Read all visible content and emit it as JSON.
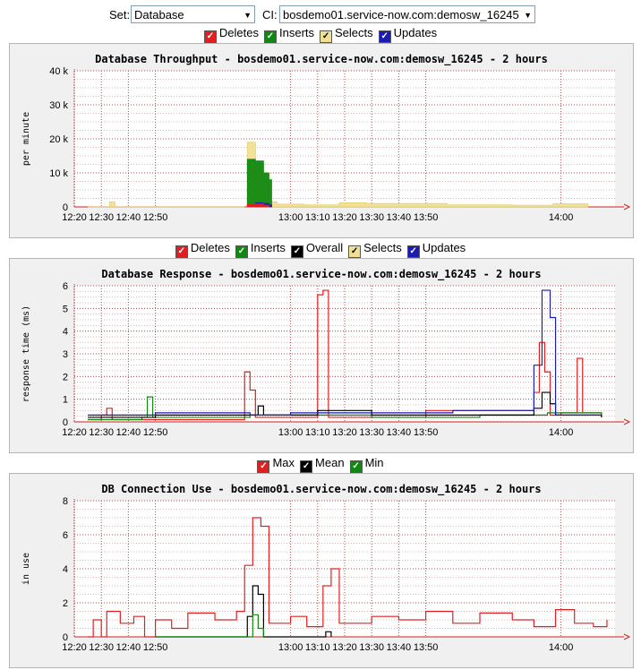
{
  "toolbar": {
    "set_label": "Set:",
    "set_value": "Database",
    "ci_label": "CI:",
    "ci_value": "bosdemo01.service-now.com:demosw_16245"
  },
  "colors": {
    "deletes": "#e02020",
    "inserts": "#118811",
    "selects": "#f0e094",
    "updates": "#1c1cb0",
    "overall": "#000000",
    "max": "#e02020",
    "mean": "#000000",
    "min": "#118811",
    "grid": "#b84b4b"
  },
  "legends": {
    "throughput": [
      {
        "label": "Deletes",
        "color": "#e02020",
        "checked": true
      },
      {
        "label": "Inserts",
        "color": "#118811",
        "checked": true
      },
      {
        "label": "Selects",
        "color": "#f0e094",
        "checked": true
      },
      {
        "label": "Updates",
        "color": "#1c1cb0",
        "checked": true
      }
    ],
    "response": [
      {
        "label": "Deletes",
        "color": "#e02020",
        "checked": true
      },
      {
        "label": "Inserts",
        "color": "#118811",
        "checked": true
      },
      {
        "label": "Overall",
        "color": "#000000",
        "checked": true
      },
      {
        "label": "Selects",
        "color": "#f0e094",
        "checked": true
      },
      {
        "label": "Updates",
        "color": "#1c1cb0",
        "checked": true
      }
    ],
    "connection": [
      {
        "label": "Max",
        "color": "#e02020",
        "checked": true
      },
      {
        "label": "Mean",
        "color": "#000000",
        "checked": true
      },
      {
        "label": "Min",
        "color": "#118811",
        "checked": true
      }
    ]
  },
  "chart_data": [
    {
      "type": "area",
      "title": "Database Throughput - bosdemo01.service-now.com:demosw_16245 - 2 hours",
      "ylabel": "per minute",
      "xlabel": "",
      "x_ticks": [
        "12:20",
        "12:30",
        "12:40",
        "12:50",
        "13:00",
        "13:10",
        "13:20",
        "13:30",
        "13:40",
        "13:50",
        "14:00"
      ],
      "y_ticks": [
        "0",
        "10 k",
        "20 k",
        "30 k",
        "40 k"
      ],
      "ylim": [
        0,
        40000
      ],
      "stacked": true,
      "series": [
        {
          "name": "Deletes",
          "points": [
            [
              12.83,
              0
            ],
            [
              12.84,
              800
            ],
            [
              12.87,
              900
            ],
            [
              12.9,
              500
            ],
            [
              12.92,
              0
            ]
          ]
        },
        {
          "name": "Inserts",
          "points": [
            [
              12.83,
              0
            ],
            [
              12.84,
              14000
            ],
            [
              12.87,
              13500
            ],
            [
              12.9,
              10000
            ],
            [
              12.92,
              8000
            ],
            [
              12.93,
              0
            ]
          ]
        },
        {
          "name": "Updates",
          "points": [
            [
              12.84,
              500
            ],
            [
              12.87,
              1200
            ],
            [
              12.9,
              1000
            ],
            [
              12.92,
              600
            ],
            [
              12.93,
              0
            ]
          ]
        },
        {
          "name": "Selects",
          "points": [
            [
              12.25,
              0
            ],
            [
              12.33,
              1500
            ],
            [
              12.35,
              0
            ],
            [
              12.84,
              19000
            ],
            [
              12.87,
              12000
            ],
            [
              12.9,
              10000
            ],
            [
              12.92,
              1500
            ],
            [
              12.95,
              800
            ],
            [
              13.05,
              600
            ],
            [
              13.18,
              1200
            ],
            [
              13.28,
              1000
            ],
            [
              13.58,
              600
            ],
            [
              13.82,
              500
            ],
            [
              13.97,
              900
            ],
            [
              14.1,
              300
            ]
          ]
        }
      ]
    },
    {
      "type": "line",
      "title": "Database Response - bosdemo01.service-now.com:demosw_16245 - 2 hours",
      "ylabel": "response time (ms)",
      "xlabel": "",
      "x_ticks": [
        "12:20",
        "12:30",
        "12:40",
        "12:50",
        "13:00",
        "13:10",
        "13:20",
        "13:30",
        "13:40",
        "13:50",
        "14:00"
      ],
      "y_ticks": [
        "0",
        "1",
        "2",
        "3",
        "4",
        "5",
        "6"
      ],
      "ylim": [
        0,
        6
      ],
      "series": [
        {
          "name": "Deletes",
          "points": [
            [
              12.25,
              0.1
            ],
            [
              12.3,
              0.3
            ],
            [
              12.32,
              0.6
            ],
            [
              12.34,
              0.1
            ],
            [
              12.83,
              2.2
            ],
            [
              12.85,
              1.4
            ],
            [
              12.87,
              0.2
            ],
            [
              13.1,
              5.6
            ],
            [
              13.12,
              5.8
            ],
            [
              13.14,
              0.2
            ],
            [
              13.5,
              0.5
            ],
            [
              13.9,
              1.3
            ],
            [
              13.92,
              3.5
            ],
            [
              13.94,
              2.2
            ],
            [
              13.96,
              0.3
            ],
            [
              14.0,
              0.4
            ],
            [
              14.06,
              2.8
            ],
            [
              14.08,
              0.4
            ],
            [
              14.15,
              0.2
            ]
          ]
        },
        {
          "name": "Inserts",
          "points": [
            [
              12.25,
              0.1
            ],
            [
              12.45,
              0.2
            ],
            [
              12.47,
              1.1
            ],
            [
              12.49,
              0.2
            ],
            [
              12.85,
              0.3
            ],
            [
              13.3,
              0.2
            ],
            [
              13.7,
              0.3
            ],
            [
              13.95,
              0.4
            ],
            [
              14.15,
              0.2
            ]
          ]
        },
        {
          "name": "Overall",
          "points": [
            [
              12.25,
              0.2
            ],
            [
              12.5,
              0.3
            ],
            [
              12.88,
              0.7
            ],
            [
              12.9,
              0.3
            ],
            [
              13.1,
              0.5
            ],
            [
              13.3,
              0.3
            ],
            [
              13.9,
              0.6
            ],
            [
              13.93,
              1.3
            ],
            [
              13.96,
              0.8
            ],
            [
              13.98,
              0.3
            ],
            [
              14.15,
              0.2
            ]
          ]
        },
        {
          "name": "Updates",
          "points": [
            [
              12.25,
              0.3
            ],
            [
              12.5,
              0.4
            ],
            [
              12.85,
              0.3
            ],
            [
              13.0,
              0.4
            ],
            [
              13.5,
              0.4
            ],
            [
              13.6,
              0.5
            ],
            [
              13.9,
              2.5
            ],
            [
              13.93,
              5.8
            ],
            [
              13.96,
              4.6
            ],
            [
              13.98,
              0.3
            ],
            [
              14.15,
              0.3
            ]
          ]
        }
      ]
    },
    {
      "type": "line",
      "title": "DB Connection Use - bosdemo01.service-now.com:demosw_16245 - 2 hours",
      "ylabel": "in use",
      "xlabel": "",
      "x_ticks": [
        "12:20",
        "12:30",
        "12:40",
        "12:50",
        "13:00",
        "13:10",
        "13:20",
        "13:30",
        "13:40",
        "13:50",
        "14:00"
      ],
      "y_ticks": [
        "0",
        "2",
        "4",
        "6",
        "8"
      ],
      "ylim": [
        0,
        8
      ],
      "series": [
        {
          "name": "Max",
          "points": [
            [
              12.25,
              0
            ],
            [
              12.27,
              1
            ],
            [
              12.3,
              0
            ],
            [
              12.32,
              1.5
            ],
            [
              12.37,
              0.8
            ],
            [
              12.42,
              1.2
            ],
            [
              12.46,
              0
            ],
            [
              12.5,
              1
            ],
            [
              12.56,
              0.5
            ],
            [
              12.62,
              1.4
            ],
            [
              12.72,
              1
            ],
            [
              12.8,
              1.5
            ],
            [
              12.83,
              4.2
            ],
            [
              12.86,
              7
            ],
            [
              12.89,
              6.5
            ],
            [
              12.92,
              0.8
            ],
            [
              13.0,
              1.2
            ],
            [
              13.06,
              0.6
            ],
            [
              13.12,
              3
            ],
            [
              13.15,
              4
            ],
            [
              13.18,
              0.8
            ],
            [
              13.3,
              1.2
            ],
            [
              13.4,
              1
            ],
            [
              13.5,
              1.5
            ],
            [
              13.6,
              0.8
            ],
            [
              13.7,
              1.4
            ],
            [
              13.82,
              1
            ],
            [
              13.9,
              0.6
            ],
            [
              13.98,
              1.6
            ],
            [
              14.05,
              0.8
            ],
            [
              14.12,
              0.6
            ],
            [
              14.17,
              1
            ]
          ]
        },
        {
          "name": "Mean",
          "points": [
            [
              12.5,
              0
            ],
            [
              12.82,
              0
            ],
            [
              12.84,
              1.2
            ],
            [
              12.86,
              3
            ],
            [
              12.88,
              2.5
            ],
            [
              12.9,
              0
            ],
            [
              13.12,
              0
            ],
            [
              13.13,
              0.3
            ],
            [
              13.15,
              0
            ]
          ]
        },
        {
          "name": "Min",
          "points": [
            [
              12.5,
              0
            ],
            [
              12.84,
              0
            ],
            [
              12.86,
              1.3
            ],
            [
              12.88,
              0.5
            ],
            [
              12.9,
              0
            ]
          ]
        }
      ]
    }
  ]
}
